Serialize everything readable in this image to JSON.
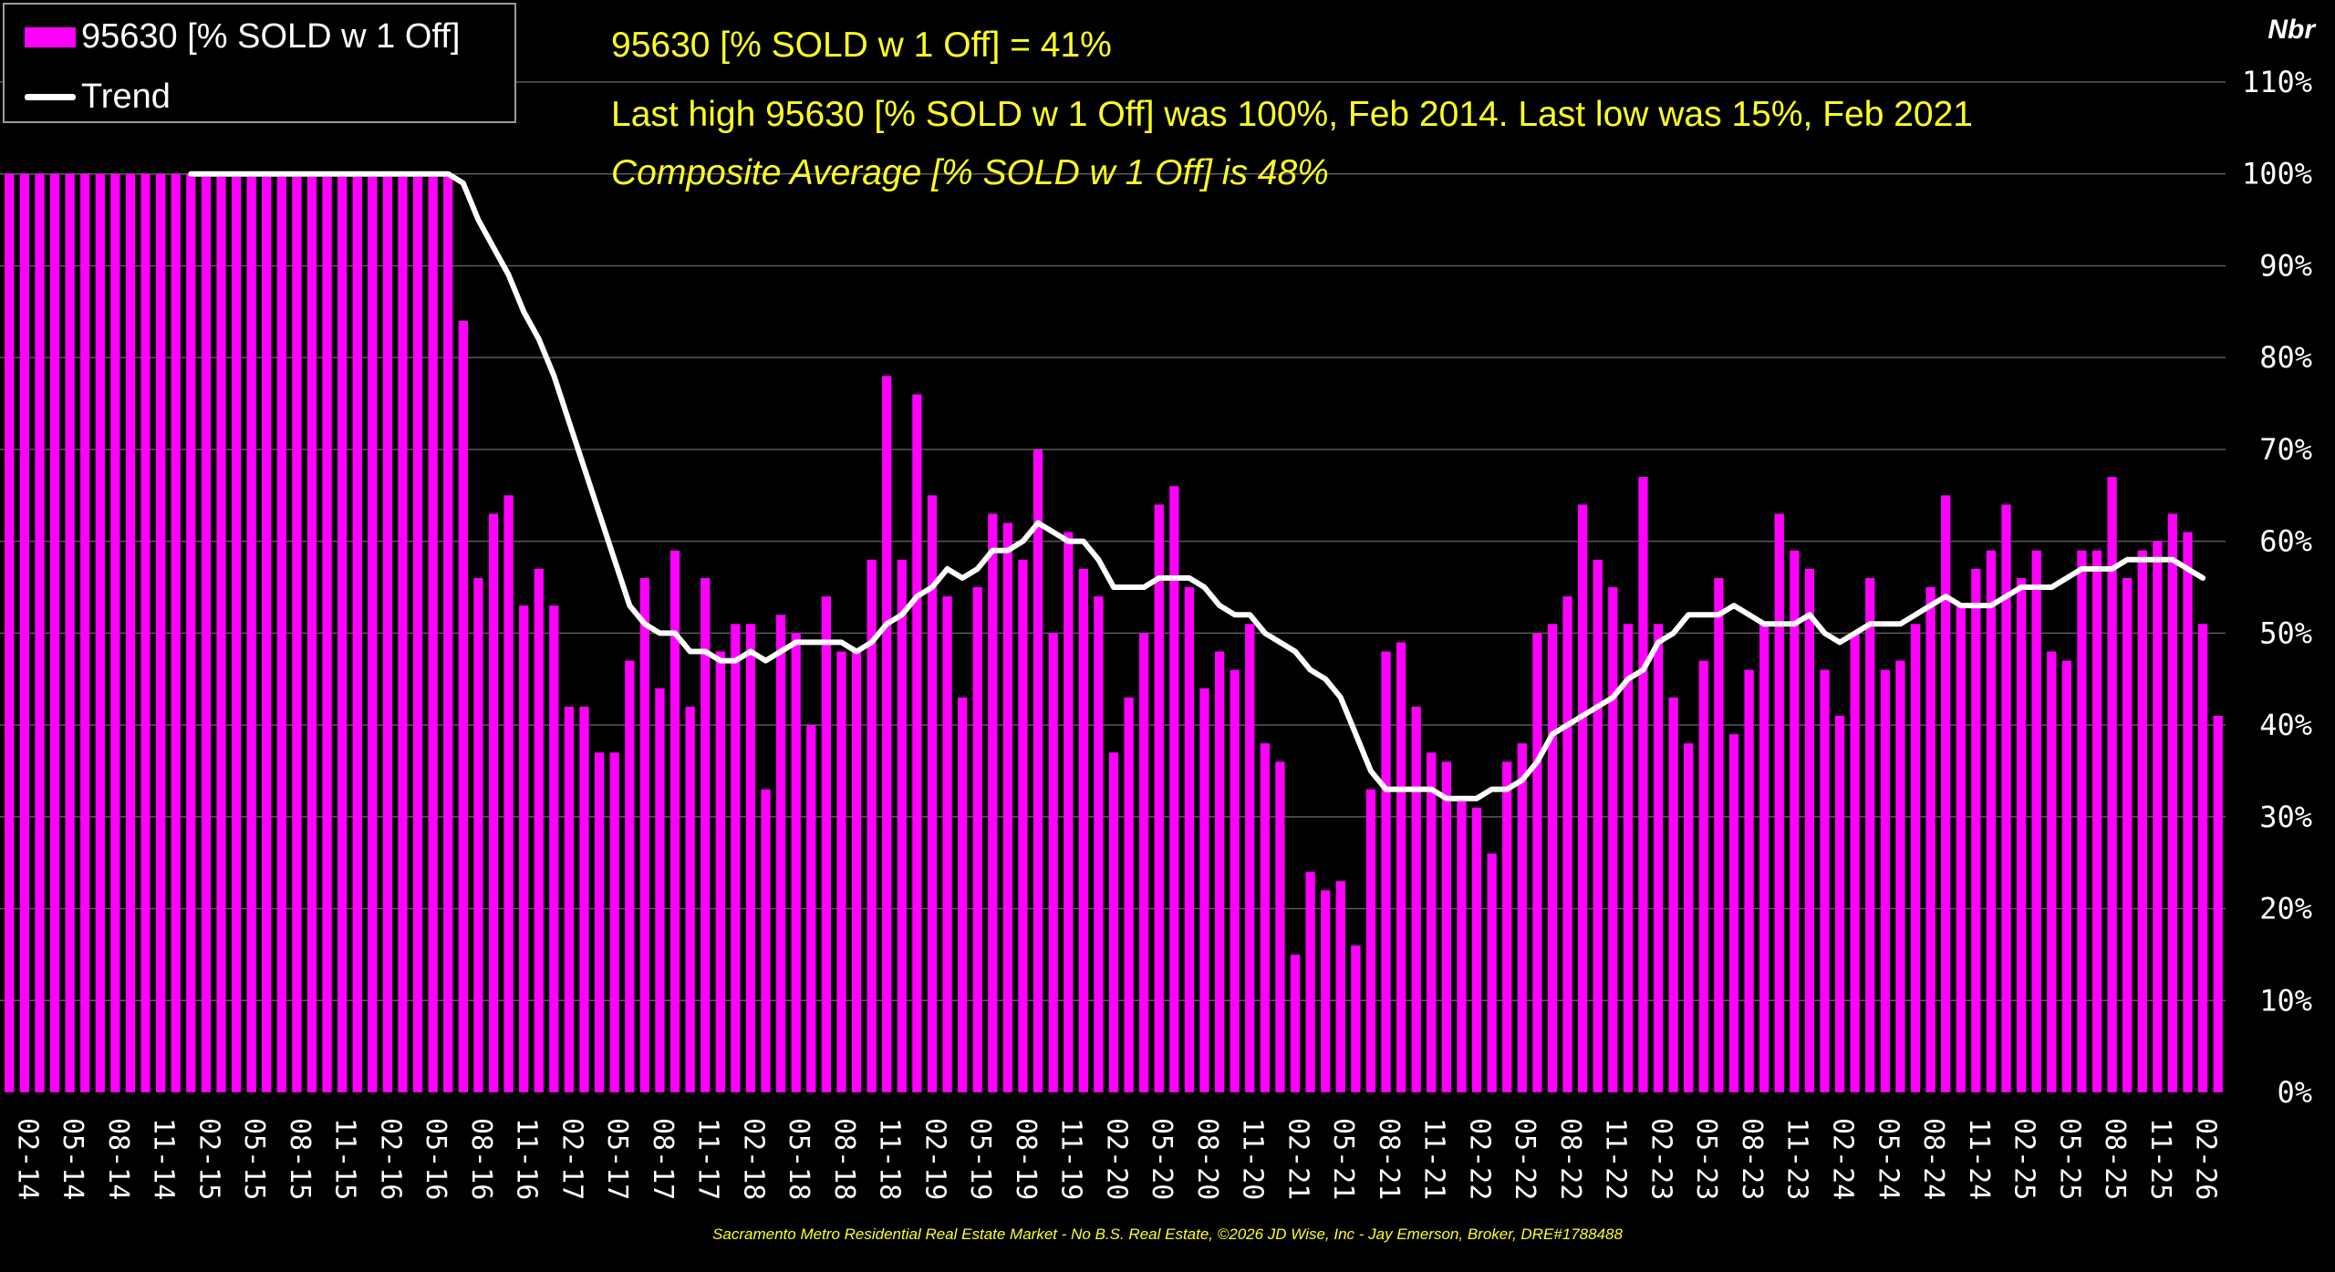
{
  "chart_data": {
    "type": "bar",
    "series": [
      {
        "name": "95630 [% SOLD w 1 Off]",
        "color": "#ff00ff",
        "values": [
          100,
          100,
          100,
          100,
          100,
          100,
          100,
          100,
          100,
          100,
          100,
          100,
          100,
          100,
          100,
          100,
          100,
          100,
          100,
          100,
          100,
          100,
          100,
          100,
          100,
          100,
          100,
          100,
          100,
          100,
          84,
          56,
          63,
          65,
          53,
          57,
          53,
          42,
          42,
          37,
          37,
          47,
          56,
          44,
          59,
          42,
          56,
          48,
          51,
          51,
          33,
          52,
          50,
          40,
          54,
          48,
          48,
          58,
          78,
          58,
          76,
          65,
          54,
          43,
          55,
          63,
          62,
          58,
          70,
          50,
          61,
          57,
          54,
          37,
          43,
          50,
          64,
          66,
          55,
          44,
          48,
          46,
          51,
          38,
          36,
          15,
          24,
          22,
          23,
          16,
          33,
          48,
          49,
          42,
          37,
          36,
          32,
          31,
          26,
          36,
          38,
          50,
          51,
          54,
          64,
          58,
          55,
          51,
          67,
          51,
          43,
          38,
          47,
          56,
          39,
          46,
          51,
          63,
          59,
          57,
          46,
          41,
          50,
          56,
          46,
          47,
          51,
          55,
          65,
          53,
          57,
          59,
          64,
          56,
          59,
          48,
          47,
          59,
          59,
          67,
          56,
          59,
          60,
          63,
          61,
          51,
          41
        ]
      },
      {
        "name": "Trend",
        "color": "#ffffff",
        "values": [
          null,
          null,
          null,
          null,
          null,
          null,
          null,
          null,
          null,
          null,
          null,
          null,
          100,
          100,
          100,
          100,
          100,
          100,
          100,
          100,
          100,
          100,
          100,
          100,
          100,
          100,
          100,
          100,
          100,
          100,
          99,
          95,
          92,
          89,
          85,
          82,
          78,
          73,
          68,
          63,
          58,
          53,
          51,
          50,
          50,
          48,
          48,
          47,
          47,
          48,
          47,
          48,
          49,
          49,
          49,
          49,
          48,
          49,
          51,
          52,
          54,
          55,
          57,
          56,
          57,
          59,
          59,
          60,
          62,
          61,
          60,
          60,
          58,
          55,
          55,
          55,
          56,
          56,
          56,
          55,
          53,
          52,
          52,
          50,
          49,
          48,
          46,
          45,
          43,
          39,
          35,
          33,
          33,
          33,
          33,
          32,
          32,
          32,
          33,
          33,
          34,
          36,
          39,
          40,
          41,
          42,
          43,
          45,
          46,
          49,
          50,
          52,
          52,
          52,
          53,
          52,
          51,
          51,
          51,
          52,
          50,
          49,
          50,
          51,
          51,
          51,
          52,
          53,
          54,
          53,
          53,
          53,
          54,
          55,
          55,
          55,
          56,
          57,
          57,
          57,
          58,
          58,
          58,
          58,
          57,
          56
        ]
      }
    ],
    "x_tick_labels": [
      "02-14",
      "05-14",
      "08-14",
      "11-14",
      "02-15",
      "05-15",
      "08-15",
      "11-15",
      "02-16",
      "05-16",
      "08-16",
      "11-16",
      "02-17",
      "05-17",
      "08-17",
      "11-17",
      "02-18",
      "05-18",
      "08-18",
      "11-18",
      "02-19",
      "05-19",
      "08-19",
      "11-19",
      "02-20",
      "05-20",
      "08-20",
      "11-20",
      "02-21",
      "05-21",
      "08-21",
      "11-21",
      "02-22",
      "05-22",
      "08-22",
      "11-22",
      "02-23",
      "05-23",
      "08-23",
      "11-23",
      "02-24",
      "05-24",
      "08-24",
      "11-24",
      "02-25",
      "05-25",
      "08-25",
      "11-25",
      "02-26"
    ],
    "y_tick_labels": [
      "0%",
      "10%",
      "20%",
      "30%",
      "40%",
      "50%",
      "60%",
      "70%",
      "80%",
      "90%",
      "100%",
      "110%"
    ],
    "ylim": [
      0,
      110
    ],
    "ylabel": "Nbr",
    "grid": true,
    "legend": "top-left"
  },
  "info": {
    "line1": "95630 [% SOLD w 1 Off] = 41%",
    "line2": "Last high 95630 [% SOLD w 1 Off] was 100%, Feb 2014. Last low was 15%, Feb 2021",
    "line3": "Composite Average [% SOLD w 1 Off] is 48%"
  },
  "legend": {
    "bar_label": "95630 [% SOLD w 1 Off]",
    "line_label": "Trend"
  },
  "footer": "Sacramento Metro Residential Real Estate Market - No B.S. Real Estate, ©2026 JD Wise, Inc - Jay Emerson, Broker, DRE#1788488"
}
